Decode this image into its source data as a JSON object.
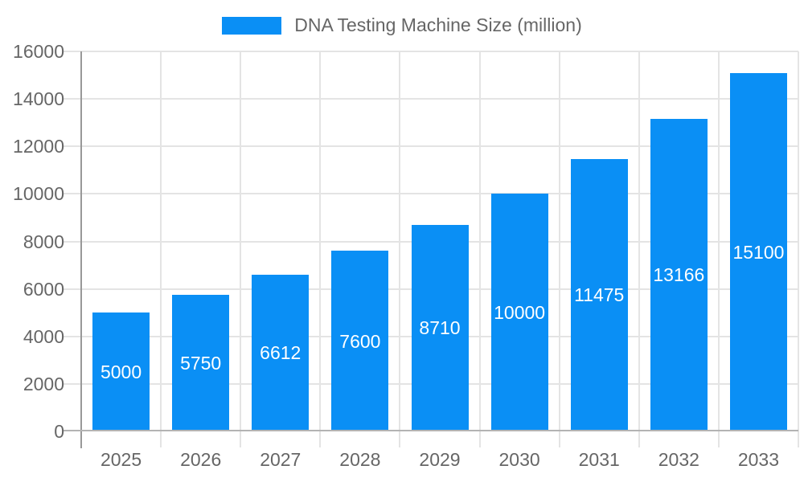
{
  "chart_data": {
    "type": "bar",
    "title": "DNA Testing Machine Size (million)",
    "categories": [
      "2025",
      "2026",
      "2027",
      "2028",
      "2029",
      "2030",
      "2031",
      "2032",
      "2033"
    ],
    "series": [
      {
        "name": "DNA Testing Machine Size (million)",
        "values": [
          5000,
          5750,
          6612,
          7600,
          8710,
          10000,
          11475,
          13166,
          15100
        ]
      }
    ],
    "xlabel": "",
    "ylabel": "",
    "ylim": [
      0,
      16000
    ],
    "ytick_step": 2000,
    "ytick_labels": [
      "0",
      "2000",
      "4000",
      "6000",
      "8000",
      "10000",
      "12000",
      "14000",
      "16000"
    ],
    "grid": true,
    "legend_position": "top",
    "data_label_position": "inside-center"
  },
  "legend": {
    "label": "DNA Testing Machine Size (million)"
  },
  "colors": {
    "bar": "#0a8ff5",
    "bar_label_text": "#ffffff",
    "axis_text": "#666666",
    "legend_text": "#666666",
    "gridline": "#e4e4e4",
    "y_axis_line": "#999999",
    "x_axis_line": "#b3b3b3",
    "background": "#ffffff"
  }
}
